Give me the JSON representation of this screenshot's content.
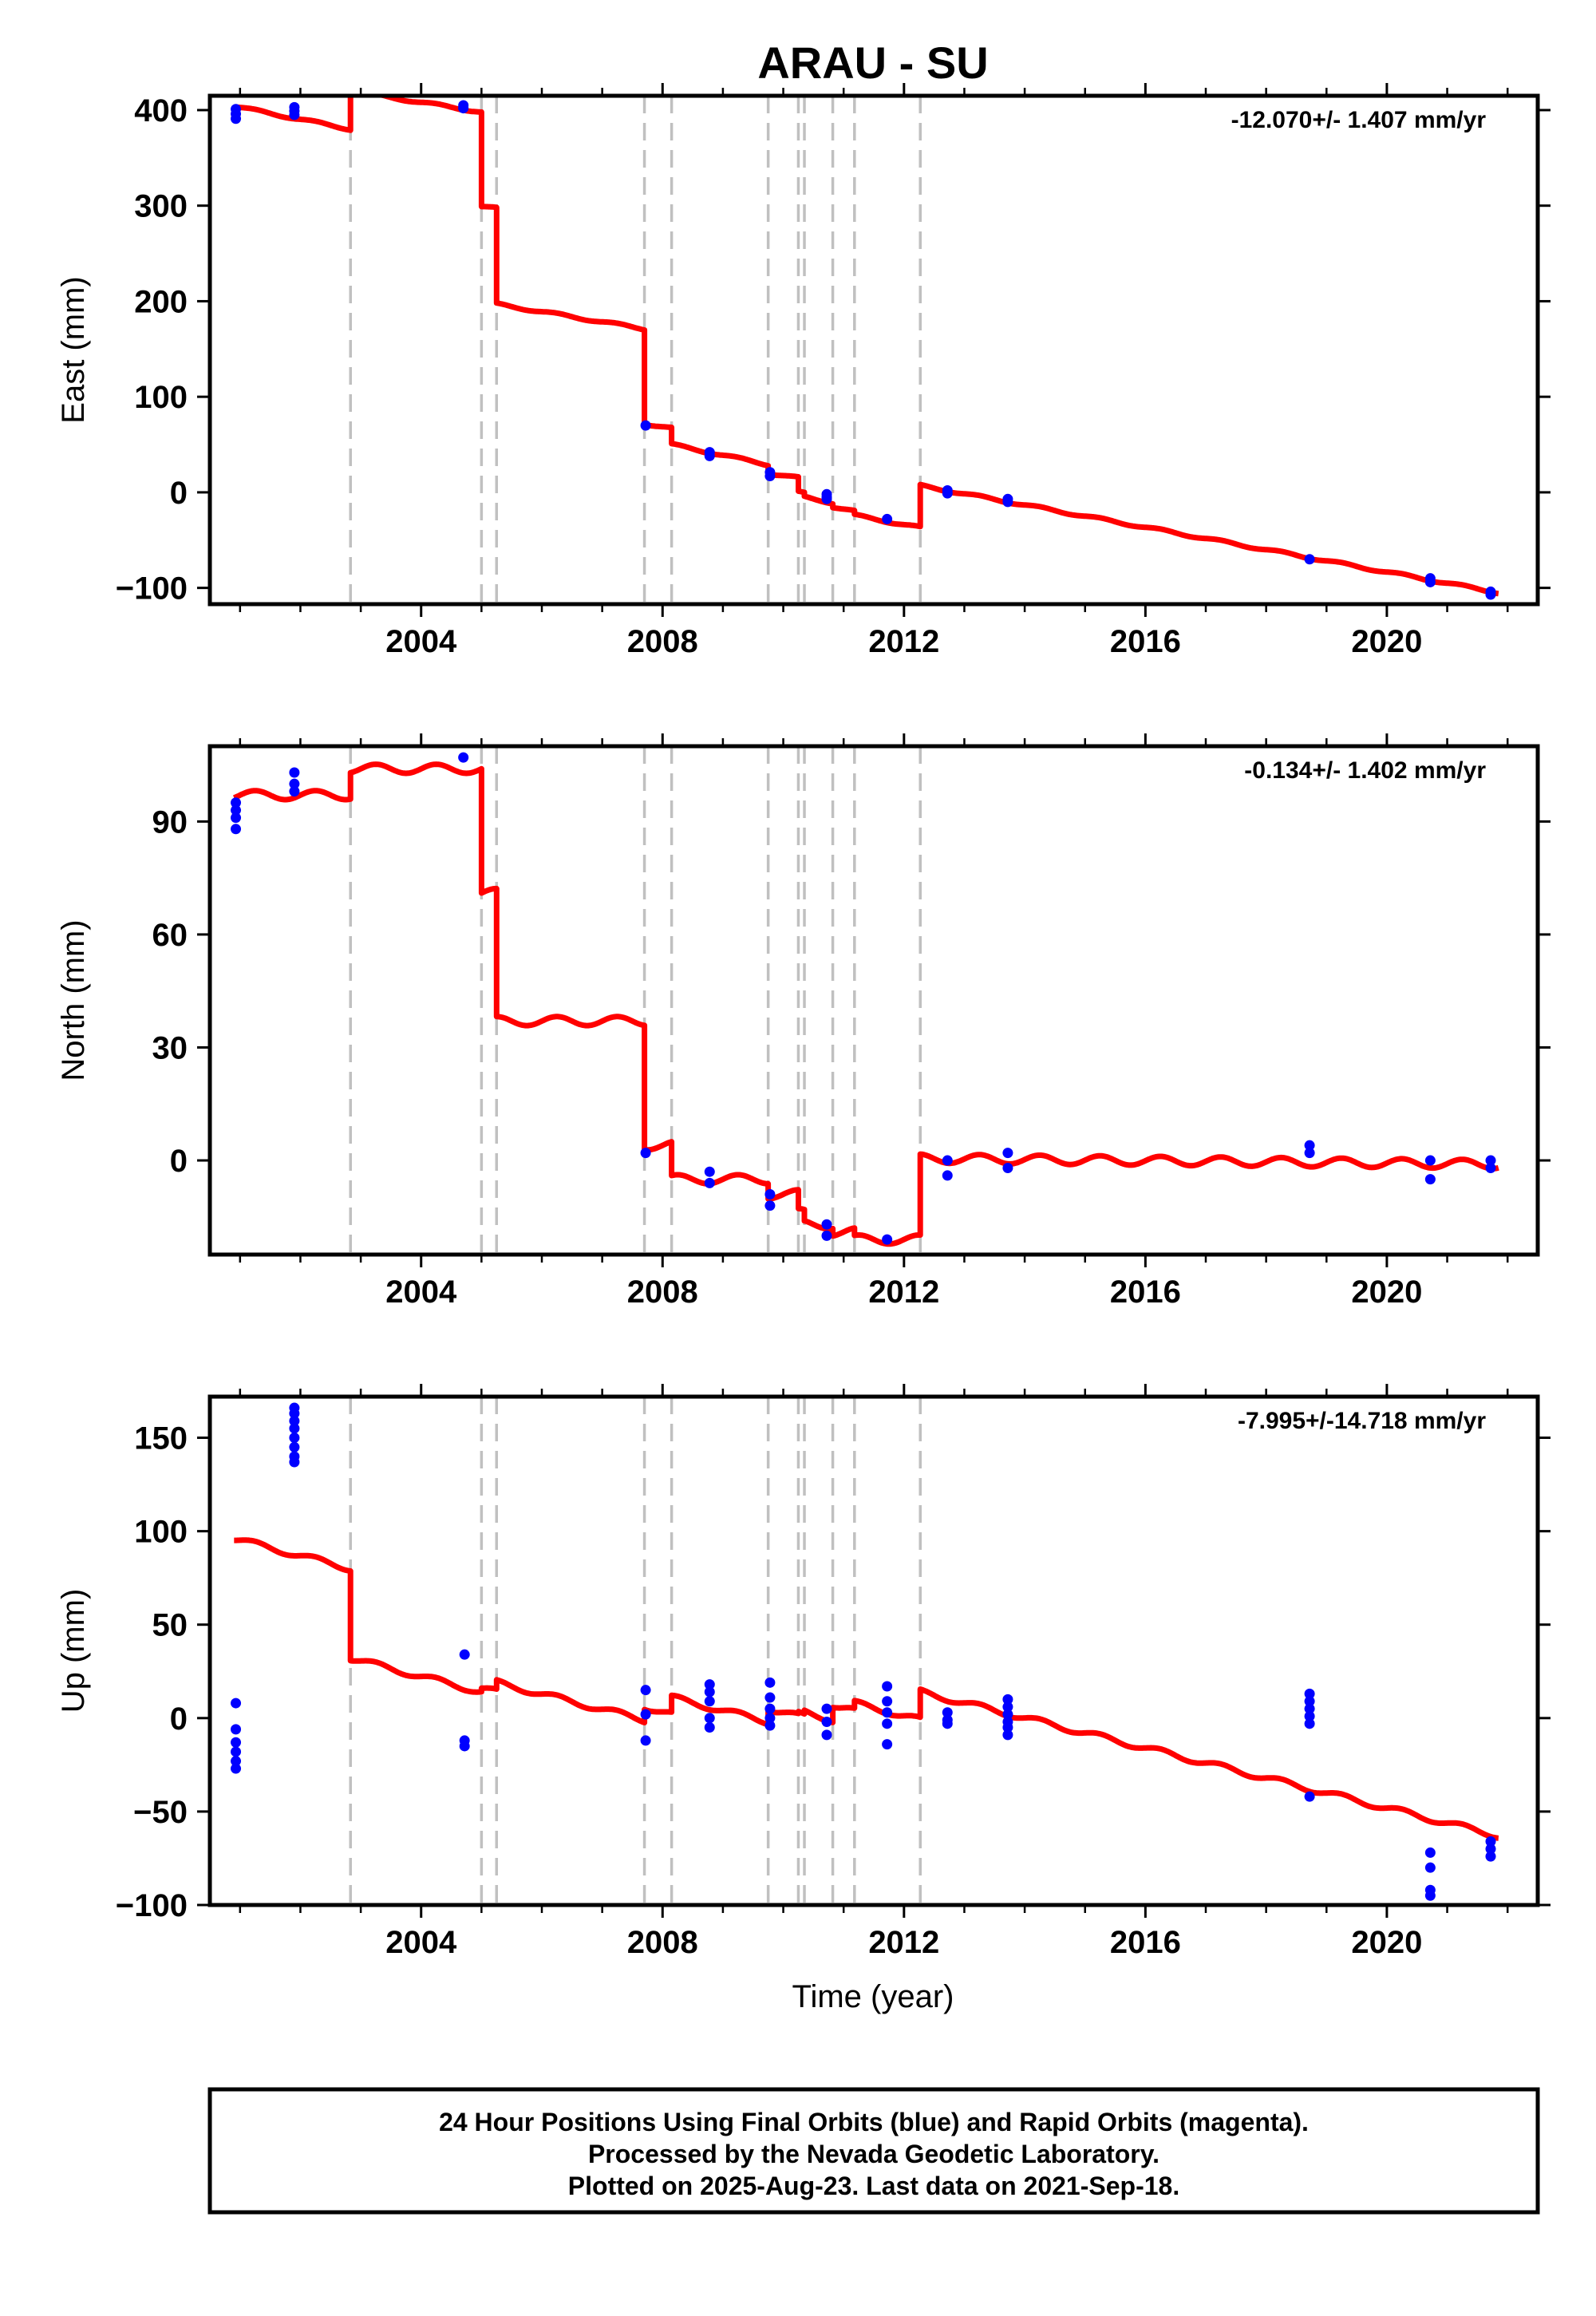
{
  "chart_data": {
    "type": "line",
    "title": "ARAU - SU",
    "xlabel": "Time (year)",
    "xlim": [
      2000.5,
      2022.5
    ],
    "x_ticks": [
      2004,
      2008,
      2012,
      2016,
      2020
    ],
    "x_minor_ticks": [
      2001,
      2002,
      2003,
      2005,
      2006,
      2007,
      2009,
      2010,
      2011,
      2013,
      2014,
      2015,
      2017,
      2018,
      2019,
      2021,
      2022
    ],
    "steps": [
      2002.83,
      2005.0,
      2005.25,
      2007.7,
      2008.15,
      2009.75,
      2010.25,
      2010.35,
      2010.82,
      2011.18,
      2012.27
    ],
    "colors": {
      "model": "#ff0000",
      "final_orbits": "#0000ff",
      "steps": "#c0c0c0"
    },
    "panels": [
      {
        "name": "east",
        "ylabel": "East (mm)",
        "rate_label": "-12.070+/- 1.407 mm/yr",
        "ylim": [
          -117,
          415
        ],
        "y_ticks": [
          -100,
          0,
          100,
          200,
          300,
          400
        ],
        "y_tick_labels": [
          "−100",
          "0",
          "100",
          "200",
          "300",
          "400"
        ],
        "model": {
          "start": 2000.9,
          "end": 2021.85,
          "amp": 1.2,
          "segments": [
            {
              "from": 2000.9,
              "to": 2002.83,
              "y0": 404,
              "y1": 380
            },
            {
              "from": 2002.83,
              "to": 2005.0,
              "y0": 420,
              "y1": 398
            },
            {
              "from": 2005.0,
              "to": 2005.25,
              "y0": 299,
              "y1": 297
            },
            {
              "from": 2005.25,
              "to": 2007.7,
              "y0": 197,
              "y1": 171
            },
            {
              "from": 2007.7,
              "to": 2008.15,
              "y0": 72,
              "y1": 67
            },
            {
              "from": 2008.15,
              "to": 2009.75,
              "y0": 50,
              "y1": 29
            },
            {
              "from": 2009.75,
              "to": 2010.25,
              "y0": 20,
              "y1": 15
            },
            {
              "from": 2010.25,
              "to": 2010.35,
              "y0": 0,
              "y1": -1
            },
            {
              "from": 2010.35,
              "to": 2010.82,
              "y0": -5,
              "y1": -11
            },
            {
              "from": 2010.82,
              "to": 2011.18,
              "y0": -15,
              "y1": -20
            },
            {
              "from": 2011.18,
              "to": 2012.27,
              "y0": -24,
              "y1": -37
            },
            {
              "from": 2012.27,
              "to": 2021.85,
              "y0": 7,
              "y1": -105
            }
          ]
        },
        "points": {
          "x": [
            2000.93,
            2000.93,
            2000.93,
            2001.9,
            2001.9,
            2001.9,
            2004.7,
            2004.7,
            2007.72,
            2008.78,
            2008.78,
            2009.78,
            2009.78,
            2010.72,
            2010.72,
            2010.72,
            2011.72,
            2012.72,
            2012.72,
            2013.72,
            2013.72,
            2018.72,
            2020.72,
            2020.72,
            2021.72,
            2021.72
          ],
          "y": [
            401,
            396,
            391,
            403,
            399,
            395,
            405,
            402,
            70,
            42,
            38,
            21,
            17,
            -2,
            -5,
            -7,
            -28,
            2,
            -1,
            -7,
            -10,
            -70,
            -90,
            -94,
            -104,
            -107
          ]
        }
      },
      {
        "name": "north",
        "ylabel": "North (mm)",
        "rate_label": "-0.134+/- 1.402 mm/yr",
        "ylim": [
          -25,
          110
        ],
        "y_ticks": [
          0,
          30,
          60,
          90
        ],
        "y_tick_labels": [
          "0",
          "30",
          "60",
          "90"
        ],
        "model": {
          "start": 2000.9,
          "end": 2021.85,
          "amp": 1.2,
          "segments": [
            {
              "from": 2000.9,
              "to": 2002.83,
              "y0": 97,
              "y1": 97
            },
            {
              "from": 2002.83,
              "to": 2005.0,
              "y0": 104,
              "y1": 104
            },
            {
              "from": 2005.0,
              "to": 2005.25,
              "y0": 71,
              "y1": 71
            },
            {
              "from": 2005.25,
              "to": 2007.7,
              "y0": 37,
              "y1": 37
            },
            {
              "from": 2007.7,
              "to": 2008.15,
              "y0": 4,
              "y1": 4
            },
            {
              "from": 2008.15,
              "to": 2009.75,
              "y0": -5,
              "y1": -5
            },
            {
              "from": 2009.75,
              "to": 2010.25,
              "y0": -9,
              "y1": -9
            },
            {
              "from": 2010.25,
              "to": 2010.35,
              "y0": -14,
              "y1": -14
            },
            {
              "from": 2010.35,
              "to": 2010.82,
              "y0": -17,
              "y1": -17
            },
            {
              "from": 2010.82,
              "to": 2011.18,
              "y0": -19,
              "y1": -19
            },
            {
              "from": 2011.18,
              "to": 2012.27,
              "y0": -21,
              "y1": -21
            },
            {
              "from": 2012.27,
              "to": 2021.85,
              "y0": 0.5,
              "y1": -1
            }
          ]
        },
        "points": {
          "x": [
            2000.93,
            2000.93,
            2000.93,
            2000.93,
            2001.9,
            2001.9,
            2001.9,
            2004.7,
            2007.72,
            2008.78,
            2008.78,
            2009.78,
            2009.78,
            2010.72,
            2010.72,
            2011.72,
            2012.72,
            2012.72,
            2013.72,
            2013.72,
            2018.72,
            2018.72,
            2020.72,
            2020.72,
            2021.72,
            2021.72
          ],
          "y": [
            95,
            93,
            91,
            88,
            103,
            100,
            98,
            107,
            2,
            -3,
            -6,
            -9,
            -12,
            -17,
            -20,
            -21,
            0,
            -4,
            2,
            -2,
            4,
            2,
            0,
            -5,
            0,
            -2
          ]
        }
      },
      {
        "name": "up",
        "ylabel": "Up (mm)",
        "rate_label": "-7.995+/-14.718 mm/yr",
        "ylim": [
          -100,
          172
        ],
        "y_ticks": [
          -100,
          -50,
          0,
          50,
          100,
          150
        ],
        "y_tick_labels": [
          "−100",
          "−50",
          "0",
          "50",
          "100",
          "150"
        ],
        "model": {
          "start": 2000.9,
          "end": 2021.85,
          "amp": 1.5,
          "segments": [
            {
              "from": 2000.9,
              "to": 2002.83,
              "y0": 96,
              "y1": 80
            },
            {
              "from": 2002.83,
              "to": 2005.0,
              "y0": 32,
              "y1": 14
            },
            {
              "from": 2005.0,
              "to": 2005.25,
              "y0": 16,
              "y1": 14
            },
            {
              "from": 2005.25,
              "to": 2007.7,
              "y0": 19,
              "y1": -1
            },
            {
              "from": 2007.7,
              "to": 2008.15,
              "y0": 6,
              "y1": 2
            },
            {
              "from": 2008.15,
              "to": 2009.75,
              "y0": 11,
              "y1": -2
            },
            {
              "from": 2009.75,
              "to": 2010.25,
              "y0": 5,
              "y1": 1
            },
            {
              "from": 2010.25,
              "to": 2010.35,
              "y0": 2,
              "y1": 1
            },
            {
              "from": 2010.35,
              "to": 2010.82,
              "y0": 3,
              "y1": -1
            },
            {
              "from": 2010.82,
              "to": 2011.18,
              "y0": 7,
              "y1": 4
            },
            {
              "from": 2011.18,
              "to": 2012.27,
              "y0": 8,
              "y1": -1
            },
            {
              "from": 2012.27,
              "to": 2021.85,
              "y0": 14,
              "y1": -63
            }
          ]
        },
        "points": {
          "x": [
            2000.93,
            2000.93,
            2000.93,
            2000.93,
            2000.93,
            2000.93,
            2001.9,
            2001.9,
            2001.9,
            2001.9,
            2001.9,
            2001.9,
            2001.9,
            2001.9,
            2004.72,
            2004.72,
            2004.72,
            2007.72,
            2007.72,
            2007.72,
            2008.78,
            2008.78,
            2008.78,
            2008.78,
            2008.78,
            2009.78,
            2009.78,
            2009.78,
            2009.78,
            2009.78,
            2010.72,
            2010.72,
            2010.72,
            2011.72,
            2011.72,
            2011.72,
            2011.72,
            2011.72,
            2012.72,
            2012.72,
            2012.72,
            2013.72,
            2013.72,
            2013.72,
            2013.72,
            2013.72,
            2013.72,
            2018.72,
            2018.72,
            2018.72,
            2018.72,
            2018.72,
            2018.72,
            2020.72,
            2020.72,
            2020.72,
            2020.72,
            2021.72,
            2021.72,
            2021.72
          ],
          "y": [
            8,
            -6,
            -13,
            -18,
            -23,
            -27,
            166,
            163,
            159,
            155,
            150,
            145,
            140,
            137,
            34,
            -12,
            -15,
            15,
            2,
            -12,
            18,
            14,
            9,
            0,
            -5,
            19,
            11,
            5,
            0,
            -4,
            5,
            -2,
            -9,
            17,
            9,
            3,
            -3,
            -14,
            3,
            -1,
            -3,
            10,
            6,
            2,
            -2,
            -5,
            -9,
            13,
            9,
            5,
            1,
            -3,
            -42,
            -72,
            -80,
            -92,
            -95,
            -66,
            -70,
            -74
          ]
        }
      }
    ]
  },
  "footer": {
    "line1": "24 Hour Positions Using Final Orbits (blue) and Rapid Orbits (magenta).",
    "line2": "Processed by the Nevada Geodetic Laboratory.",
    "line3": "Plotted on 2025-Aug-23. Last data on 2021-Sep-18."
  }
}
